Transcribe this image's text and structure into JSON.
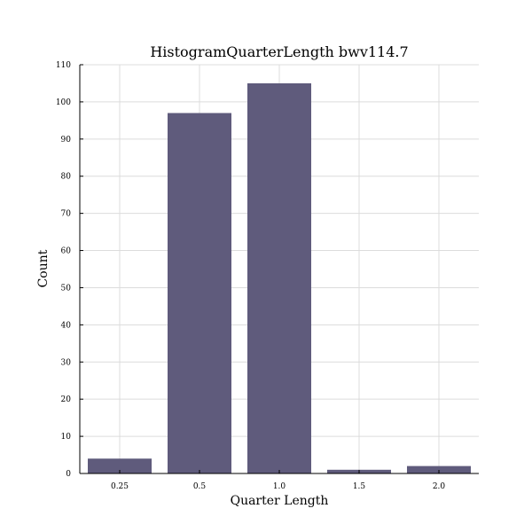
{
  "chart_data": {
    "type": "bar",
    "title": "HistogramQuarterLength bwv114.7",
    "xlabel": "Quarter Length",
    "ylabel": "Count",
    "categories": [
      "0.25",
      "0.5",
      "1.0",
      "1.5",
      "2.0"
    ],
    "values": [
      4,
      97,
      105,
      1,
      2
    ],
    "ylim": [
      0,
      110
    ],
    "yticks": [
      0,
      10,
      20,
      30,
      40,
      50,
      60,
      70,
      80,
      90,
      100,
      110
    ],
    "grid": true,
    "bar_color": "#5f5b7c"
  }
}
